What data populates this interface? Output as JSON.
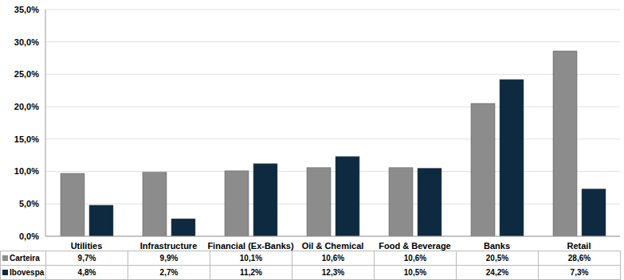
{
  "chart_data": {
    "type": "bar",
    "categories": [
      "Utilities",
      "Infrastructure",
      "Financial (Ex-Banks)",
      "Oil & Chemical",
      "Food & Beverage",
      "Banks",
      "Retail"
    ],
    "series": [
      {
        "name": "Carteira",
        "color": "#8c8c8c",
        "values": [
          9.7,
          9.9,
          10.1,
          10.6,
          10.6,
          20.5,
          28.6
        ],
        "value_labels": [
          "9,7%",
          "9,9%",
          "10,1%",
          "10,6%",
          "10,6%",
          "20,5%",
          "28,6%"
        ]
      },
      {
        "name": "Ibovespa",
        "color": "#0d2a40",
        "values": [
          4.8,
          2.7,
          11.2,
          12.3,
          10.5,
          24.2,
          7.3
        ],
        "value_labels": [
          "4,8%",
          "2,7%",
          "11,2%",
          "12,3%",
          "10,5%",
          "24,2%",
          "7,3%"
        ]
      }
    ],
    "ylim": [
      0,
      35
    ],
    "yticks": [
      {
        "value": 0,
        "label": "0,0%"
      },
      {
        "value": 5,
        "label": "5,0%"
      },
      {
        "value": 10,
        "label": "10,0%"
      },
      {
        "value": 15,
        "label": "15,0%"
      },
      {
        "value": 20,
        "label": "20,0%"
      },
      {
        "value": 25,
        "label": "25,0%"
      },
      {
        "value": 30,
        "label": "30,0%"
      },
      {
        "value": 35,
        "label": "35,0%"
      }
    ],
    "grid": true
  }
}
